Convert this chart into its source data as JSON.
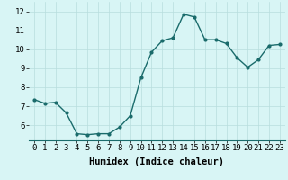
{
  "x": [
    0,
    1,
    2,
    3,
    4,
    5,
    6,
    7,
    8,
    9,
    10,
    11,
    12,
    13,
    14,
    15,
    16,
    17,
    18,
    19,
    20,
    21,
    22,
    23
  ],
  "y": [
    7.35,
    7.15,
    7.2,
    6.65,
    5.55,
    5.5,
    5.55,
    5.55,
    5.9,
    6.5,
    8.5,
    9.85,
    10.45,
    10.6,
    11.85,
    11.7,
    10.5,
    10.5,
    10.3,
    9.55,
    9.05,
    9.45,
    10.2,
    10.25
  ],
  "line_color": "#1a6b6b",
  "marker": "o",
  "marker_size": 2.0,
  "bg_color": "#d8f5f5",
  "grid_color": "#b8dede",
  "xlabel": "Humidex (Indice chaleur)",
  "xlabel_fontsize": 7.5,
  "ylim": [
    5.2,
    12.5
  ],
  "yticks": [
    6,
    7,
    8,
    9,
    10,
    11,
    12
  ],
  "xticks": [
    0,
    1,
    2,
    3,
    4,
    5,
    6,
    7,
    8,
    9,
    10,
    11,
    12,
    13,
    14,
    15,
    16,
    17,
    18,
    19,
    20,
    21,
    22,
    23
  ],
  "tick_fontsize": 6.5,
  "line_width": 1.0
}
